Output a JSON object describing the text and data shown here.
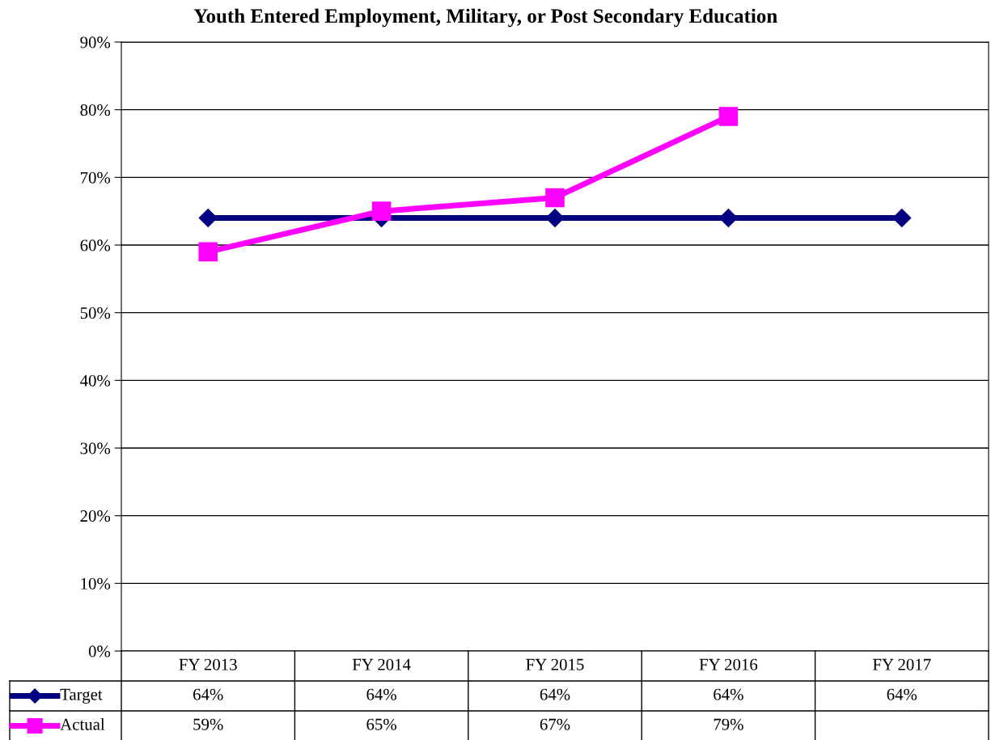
{
  "chart_data": {
    "type": "line",
    "title": "Youth Entered Employment, Military, or Post Secondary Education",
    "categories": [
      "FY 2013",
      "FY 2014",
      "FY 2015",
      "FY 2016",
      "FY 2017"
    ],
    "series": [
      {
        "name": "Target",
        "color": "#000080",
        "marker": "diamond",
        "values": [
          64,
          64,
          64,
          64,
          64
        ],
        "value_labels": [
          "64%",
          "64%",
          "64%",
          "64%",
          "64%"
        ]
      },
      {
        "name": "Actual",
        "color": "#ff00ff",
        "marker": "square",
        "values": [
          59,
          65,
          67,
          79,
          null
        ],
        "value_labels": [
          "59%",
          "65%",
          "67%",
          "79%",
          null
        ]
      }
    ],
    "ylim": [
      0,
      90
    ],
    "yticks": [
      {
        "value": 0,
        "label": "0%"
      },
      {
        "value": 10,
        "label": "10%"
      },
      {
        "value": 20,
        "label": "20%"
      },
      {
        "value": 30,
        "label": "30%"
      },
      {
        "value": 40,
        "label": "40%"
      },
      {
        "value": 50,
        "label": "50%"
      },
      {
        "value": 60,
        "label": "60%"
      },
      {
        "value": 70,
        "label": "70%"
      },
      {
        "value": 80,
        "label": "80%"
      },
      {
        "value": 90,
        "label": "90%"
      }
    ],
    "grid": "y",
    "legend": "bottom left"
  }
}
